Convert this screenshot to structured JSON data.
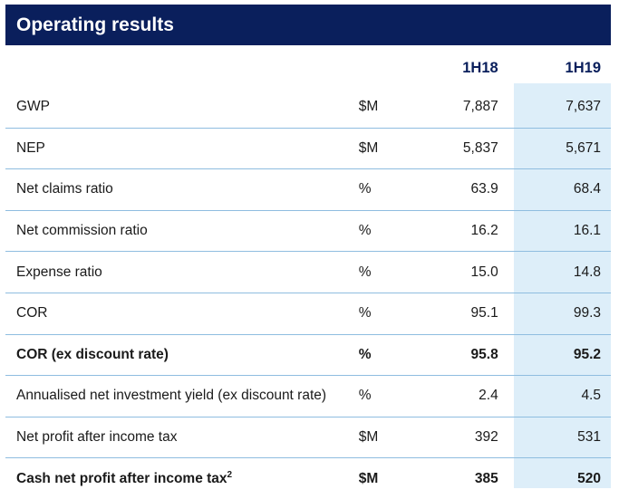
{
  "title": "Operating results",
  "columns": [
    "1H18",
    "1H19"
  ],
  "rows": [
    {
      "label": "GWP",
      "unit": "$M",
      "h18": "7,887",
      "h19": "7,637"
    },
    {
      "label": "NEP",
      "unit": "$M",
      "h18": "5,837",
      "h19": "5,671"
    },
    {
      "label": "Net claims ratio",
      "unit": "%",
      "h18": "63.9",
      "h19": "68.4"
    },
    {
      "label": "Net commission ratio",
      "unit": "%",
      "h18": "16.2",
      "h19": "16.1"
    },
    {
      "label": "Expense ratio",
      "unit": "%",
      "h18": "15.0",
      "h19": "14.8"
    },
    {
      "label": "COR",
      "unit": "%",
      "h18": "95.1",
      "h19": "99.3"
    },
    {
      "label": "COR (ex discount rate)",
      "unit": "%",
      "h18": "95.8",
      "h19": "95.2"
    },
    {
      "label": "Annualised net investment yield (ex discount rate)",
      "unit": "%",
      "h18": "2.4",
      "h19": "4.5"
    },
    {
      "label": "Net profit after income tax",
      "unit": "$M",
      "h18": "392",
      "h19": "531"
    },
    {
      "label": "Cash net profit after income tax",
      "footnote": "2",
      "unit": "$M",
      "h18": "385",
      "h19": "520"
    }
  ],
  "colors": {
    "header_bg": "#0a1f5c",
    "highlight_column": "#ddeef9",
    "row_divider": "#8fbde0"
  }
}
